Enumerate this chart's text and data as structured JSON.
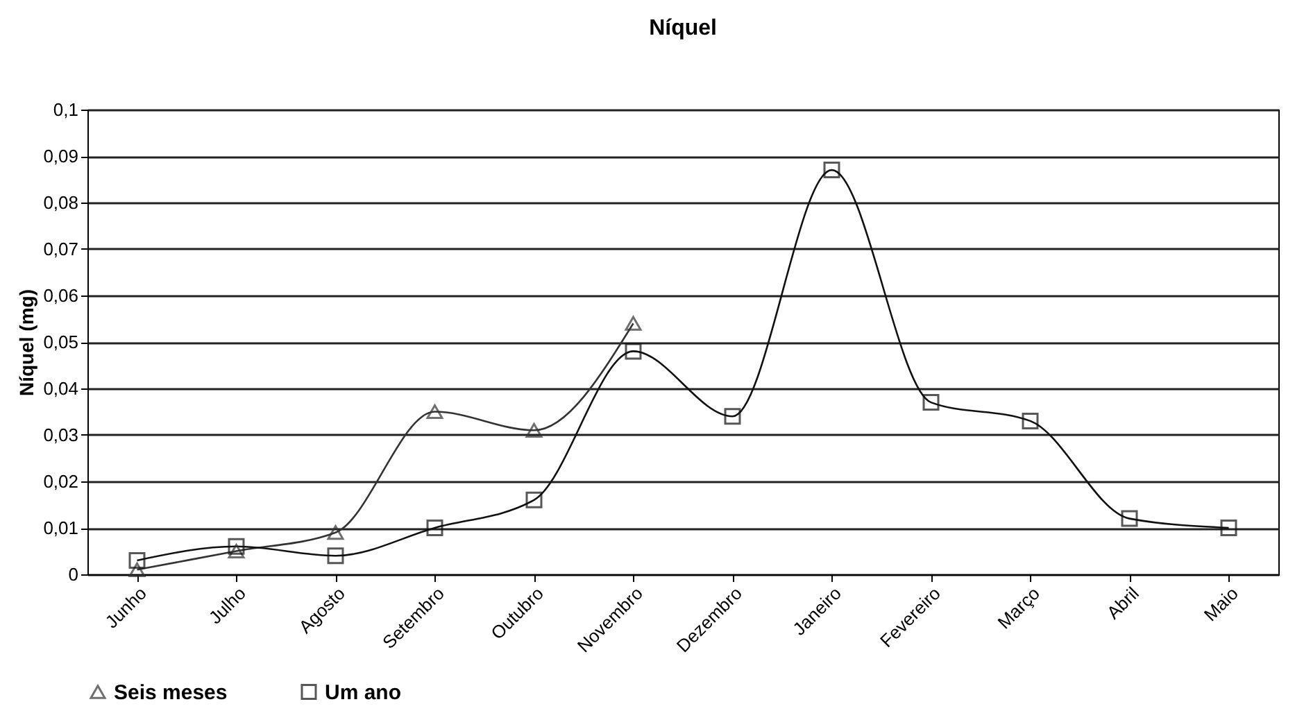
{
  "chart_data": {
    "type": "line",
    "title": "Níquel",
    "ylabel": "Níquel (mg)",
    "categories": [
      "Junho",
      "Julho",
      "Agosto",
      "Setembro",
      "Outubro",
      "Novembro",
      "Dezembro",
      "Janeiro",
      "Fevereiro",
      "Março",
      "Abril",
      "Maio"
    ],
    "series": [
      {
        "name": "Seis meses",
        "color": "#333333",
        "marker": "triangle",
        "values": [
          0.001,
          0.005,
          0.009,
          0.035,
          0.031,
          0.054,
          null,
          null,
          null,
          null,
          null,
          null
        ]
      },
      {
        "name": "Um ano",
        "color": "#111111",
        "marker": "square",
        "values": [
          0.003,
          0.006,
          0.004,
          0.01,
          0.016,
          0.048,
          0.034,
          0.087,
          0.037,
          0.033,
          0.012,
          0.01
        ]
      }
    ],
    "ylim": [
      0,
      0.1
    ],
    "yticks": [
      {
        "value": 0,
        "label": "0"
      },
      {
        "value": 0.01,
        "label": "0,01"
      },
      {
        "value": 0.02,
        "label": "0,02"
      },
      {
        "value": 0.03,
        "label": "0,03"
      },
      {
        "value": 0.04,
        "label": "0,04"
      },
      {
        "value": 0.05,
        "label": "0,05"
      },
      {
        "value": 0.06,
        "label": "0,06"
      },
      {
        "value": 0.07,
        "label": "0,07"
      },
      {
        "value": 0.08,
        "label": "0,08"
      },
      {
        "value": 0.09,
        "label": "0,09"
      },
      {
        "value": 0.1,
        "label": "0,1"
      }
    ],
    "grid": "y",
    "legend": "bottom",
    "line_style": "solid"
  }
}
